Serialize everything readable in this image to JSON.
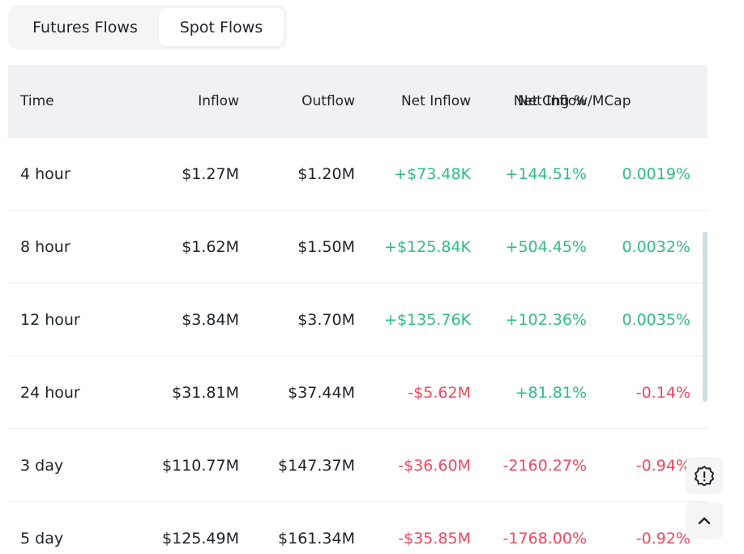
{
  "tabs": [
    {
      "label": "Futures Flows",
      "active": false
    },
    {
      "label": "Spot Flows",
      "active": true
    }
  ],
  "table": {
    "headers": {
      "time": "Time",
      "inflow": "Inflow",
      "outflow": "Outflow",
      "net_inflow": "Net Inflow",
      "net_chg": "Net Chg %",
      "net_inflow_mcap": "Net Inflow/MCap"
    },
    "rows": [
      {
        "time": "4 hour",
        "inflow": "$1.27M",
        "outflow": "$1.20M",
        "net_inflow": "+$73.48K",
        "net_chg": "+144.51%",
        "mcap": "0.0019%"
      },
      {
        "time": "8 hour",
        "inflow": "$1.62M",
        "outflow": "$1.50M",
        "net_inflow": "+$125.84K",
        "net_chg": "+504.45%",
        "mcap": "0.0032%"
      },
      {
        "time": "12 hour",
        "inflow": "$3.84M",
        "outflow": "$3.70M",
        "net_inflow": "+$135.76K",
        "net_chg": "+102.36%",
        "mcap": "0.0035%"
      },
      {
        "time": "24 hour",
        "inflow": "$31.81M",
        "outflow": "$37.44M",
        "net_inflow": "-$5.62M",
        "net_chg": "+81.81%",
        "mcap": "-0.14%"
      },
      {
        "time": "3 day",
        "inflow": "$110.77M",
        "outflow": "$147.37M",
        "net_inflow": "-$36.60M",
        "net_chg": "-2160.27%",
        "mcap": "-0.94%"
      },
      {
        "time": "5 day",
        "inflow": "$125.49M",
        "outflow": "$161.34M",
        "net_inflow": "-$35.85M",
        "net_chg": "-1768.00%",
        "mcap": "-0.92%"
      }
    ]
  },
  "floating": {
    "feedback_icon": "alert-badge-icon",
    "top_icon": "chevron-up-icon"
  },
  "colors": {
    "positive": "#2ebd85",
    "negative": "#f6465d",
    "header_bg": "#eff1f4"
  }
}
